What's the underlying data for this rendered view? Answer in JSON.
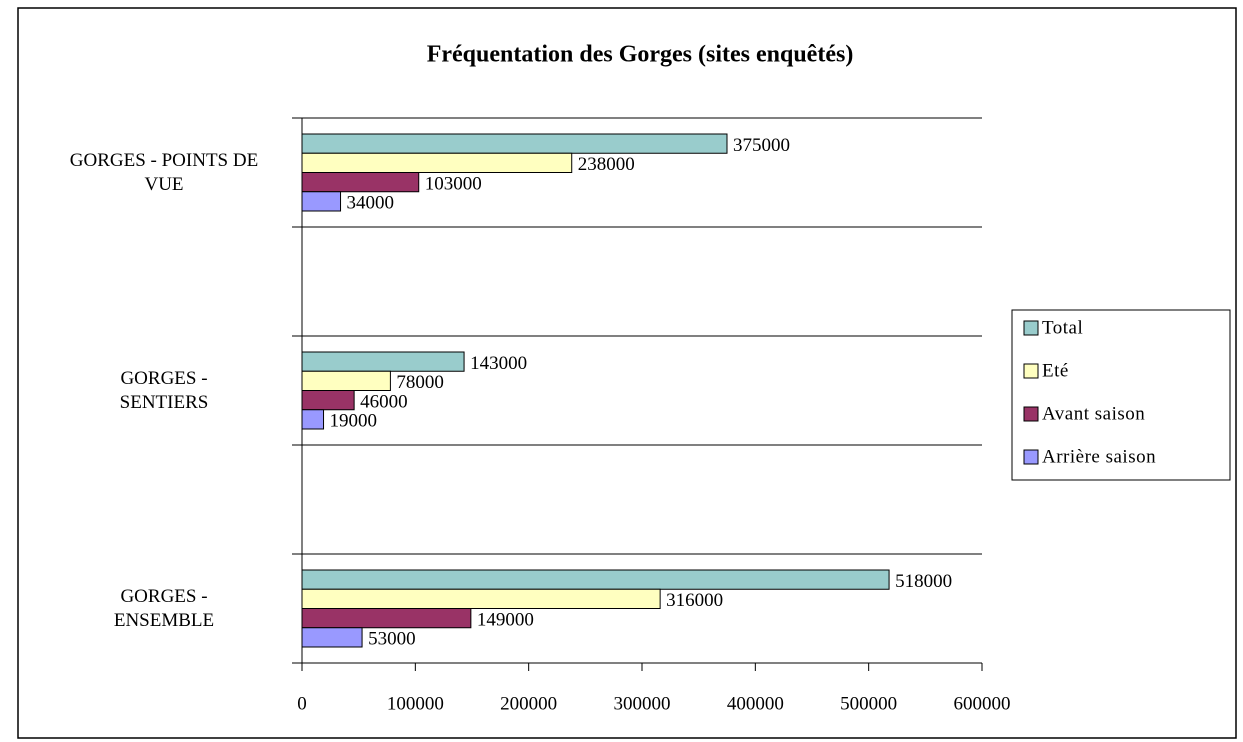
{
  "chart_data": {
    "type": "barh",
    "title": "Fréquentation des Gorges (sites enquêtés)",
    "categories": [
      "GORGES - POINTS DE VUE",
      null,
      "GORGES - SENTIERS",
      null,
      "GORGES - ENSEMBLE"
    ],
    "series": [
      {
        "name": "Total",
        "color": "#99cccc",
        "values": [
          375000,
          null,
          143000,
          null,
          518000
        ]
      },
      {
        "name": "Eté",
        "color": "#ffffc0",
        "values": [
          238000,
          null,
          78000,
          null,
          316000
        ]
      },
      {
        "name": "Avant saison",
        "color": "#993366",
        "values": [
          103000,
          null,
          46000,
          null,
          149000
        ]
      },
      {
        "name": "Arrière saison",
        "color": "#9999ff",
        "values": [
          34000,
          null,
          19000,
          null,
          53000
        ]
      }
    ],
    "xlim": [
      0,
      600000
    ],
    "xticks": [
      0,
      100000,
      200000,
      300000,
      400000,
      500000,
      600000
    ],
    "grid": true,
    "legend": "right"
  }
}
